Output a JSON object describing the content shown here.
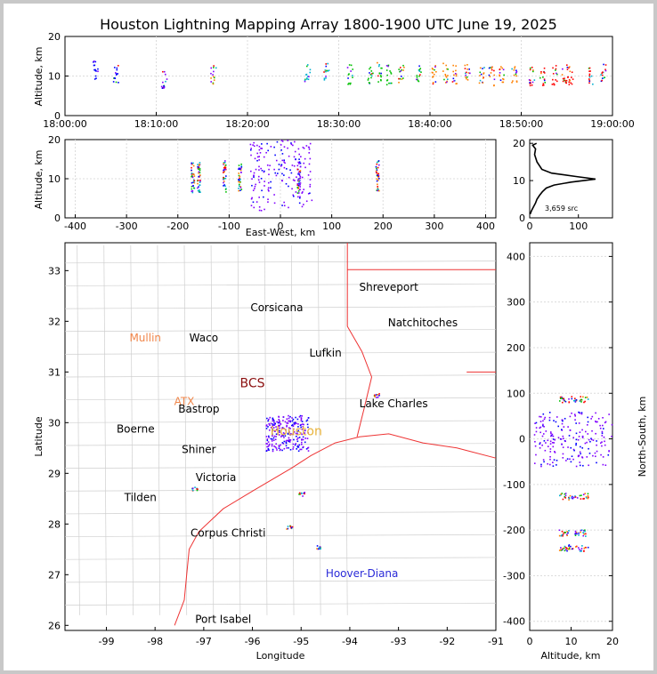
{
  "title": "Houston Lightning Mapping Array 1800-1900 UTC June 19, 2025",
  "time_panel": {
    "ylabel": "Altitude, km",
    "ylim": [
      0,
      20
    ],
    "yticks": [
      "0",
      "10",
      "20"
    ],
    "xticks": [
      "18:00:00",
      "18:10:00",
      "18:20:00",
      "18:30:00",
      "18:40:00",
      "18:50:00",
      "19:00:00"
    ],
    "bursts": [
      {
        "t": 3.3,
        "alt": 11.5
      },
      {
        "t": 5.5,
        "alt": 11
      },
      {
        "t": 10.8,
        "alt": 9.6
      },
      {
        "t": 16.2,
        "alt": 10.3
      },
      {
        "t": 26.5,
        "alt": 11
      },
      {
        "t": 28.6,
        "alt": 11
      },
      {
        "t": 31.2,
        "alt": 10.6
      },
      {
        "t": 33.4,
        "alt": 10.4
      },
      {
        "t": 34.4,
        "alt": 11.2
      },
      {
        "t": 35.5,
        "alt": 10.4
      },
      {
        "t": 36.8,
        "alt": 10.4
      },
      {
        "t": 38.7,
        "alt": 11
      },
      {
        "t": 40.4,
        "alt": 10.4
      },
      {
        "t": 41.6,
        "alt": 11
      },
      {
        "t": 42.6,
        "alt": 10.6
      },
      {
        "t": 44.0,
        "alt": 11
      },
      {
        "t": 45.6,
        "alt": 10.4
      },
      {
        "t": 46.7,
        "alt": 10
      },
      {
        "t": 47.8,
        "alt": 10.6
      },
      {
        "t": 49.2,
        "alt": 10.2
      },
      {
        "t": 51.1,
        "alt": 10
      },
      {
        "t": 52.3,
        "alt": 9.8
      },
      {
        "t": 53.6,
        "alt": 10.4
      },
      {
        "t": 54.7,
        "alt": 10.6
      },
      {
        "t": 55.3,
        "alt": 10.2
      },
      {
        "t": 57.5,
        "alt": 10.6
      },
      {
        "t": 58.9,
        "alt": 10.8
      }
    ]
  },
  "ew_panel": {
    "ylabel": "Altitude, km",
    "xlabel": "East-West, km",
    "xlim": [
      -420,
      420
    ],
    "xticks": [
      "-400",
      "-300",
      "-200",
      "-100",
      "0",
      "100",
      "200",
      "300",
      "400"
    ],
    "ylim": [
      0,
      20
    ],
    "yticks": [
      "0",
      "10",
      "20"
    ],
    "columns": [
      {
        "x": -172,
        "alt": 10.5
      },
      {
        "x": -160,
        "alt": 10.5
      },
      {
        "x": -110,
        "alt": 10.8
      },
      {
        "x": -80,
        "alt": 10.2
      },
      {
        "x": 35,
        "alt": 10.5
      },
      {
        "x": 188,
        "alt": 10.8
      }
    ]
  },
  "alt_hist": {
    "xticks": [
      "0",
      "100"
    ],
    "yticks": [
      "0",
      "10",
      "20"
    ],
    "xlim": [
      0,
      170
    ],
    "ylim": [
      0,
      21
    ],
    "count_label": "3,659 src",
    "profile": [
      [
        1,
        1
      ],
      [
        4,
        2
      ],
      [
        8,
        3
      ],
      [
        12,
        4
      ],
      [
        15,
        5
      ],
      [
        20,
        6
      ],
      [
        26,
        7
      ],
      [
        34,
        8
      ],
      [
        50,
        8.8
      ],
      [
        85,
        9.6
      ],
      [
        135,
        10.4
      ],
      [
        95,
        11.1
      ],
      [
        45,
        12
      ],
      [
        25,
        13
      ],
      [
        15,
        15
      ],
      [
        10,
        17
      ],
      [
        12,
        18.5
      ],
      [
        6,
        19.5
      ],
      [
        14,
        20
      ]
    ]
  },
  "map_panel": {
    "xlabel": "Longitude",
    "ylabel": "Latitude",
    "xlim": [
      -99.85,
      -91.0
    ],
    "ylim": [
      25.9,
      33.55
    ],
    "xticks": [
      "-99",
      "-98",
      "-97",
      "-96",
      "-95",
      "-94",
      "-93",
      "-92",
      "-91"
    ],
    "yticks": [
      "26",
      "27",
      "28",
      "29",
      "30",
      "31",
      "32",
      "33"
    ],
    "cities": [
      {
        "name": "Shreveport",
        "lon": -93.2,
        "lat": 32.6,
        "color": "#000000"
      },
      {
        "name": "Corsicana",
        "lon": -95.5,
        "lat": 32.2,
        "color": "#000000"
      },
      {
        "name": "Mullin",
        "lon": -98.2,
        "lat": 31.6,
        "color": "#f0864a"
      },
      {
        "name": "Waco",
        "lon": -97.0,
        "lat": 31.6,
        "color": "#000000"
      },
      {
        "name": "Natchitoches",
        "lon": -92.5,
        "lat": 31.9,
        "color": "#000000"
      },
      {
        "name": "Lufkin",
        "lon": -94.5,
        "lat": 31.3,
        "color": "#000000"
      },
      {
        "name": "BCS",
        "lon": -96.0,
        "lat": 30.7,
        "color": "#8b1010"
      },
      {
        "name": "ATX",
        "lon": -97.4,
        "lat": 30.35,
        "color": "#f0864a"
      },
      {
        "name": "Bastrop",
        "lon": -97.1,
        "lat": 30.2,
        "color": "#000000"
      },
      {
        "name": "Lake Charles",
        "lon": -93.1,
        "lat": 30.3,
        "color": "#000000"
      },
      {
        "name": "Boerne",
        "lon": -98.4,
        "lat": 29.8,
        "color": "#000000"
      },
      {
        "name": "Houston",
        "lon": -95.1,
        "lat": 29.75,
        "color": "#e8b23a"
      },
      {
        "name": "Shiner",
        "lon": -97.1,
        "lat": 29.4,
        "color": "#000000"
      },
      {
        "name": "Victoria",
        "lon": -96.75,
        "lat": 28.85,
        "color": "#000000"
      },
      {
        "name": "Tilden",
        "lon": -98.3,
        "lat": 28.45,
        "color": "#000000"
      },
      {
        "name": "Corpus Christi",
        "lon": -96.5,
        "lat": 27.75,
        "color": "#000000"
      },
      {
        "name": "Hoover-Diana",
        "lon": -93.75,
        "lat": 26.95,
        "color": "#2b2bd8"
      },
      {
        "name": "Port Isabel",
        "lon": -96.6,
        "lat": 26.05,
        "color": "#000000"
      }
    ]
  },
  "ns_panel": {
    "ylabel": "North-South, km",
    "xlabel": "Altitude, km",
    "xlim": [
      0,
      20
    ],
    "xticks": [
      "0",
      "10",
      "20"
    ],
    "ylim": [
      -420,
      430
    ],
    "yticks": [
      "-400",
      "-300",
      "-200",
      "-100",
      "0",
      "100",
      "200",
      "300",
      "400"
    ],
    "bands": [
      {
        "ns": 88,
        "alt": 10.5
      },
      {
        "ns": -125,
        "alt": 10.5
      },
      {
        "ns": -205,
        "alt": 10.5
      },
      {
        "ns": -238,
        "alt": 10.5
      }
    ]
  },
  "colors": {
    "red": "#ff0000",
    "green": "#00c000",
    "blue": "#0000ff",
    "cyan": "#00b0d0",
    "violet": "#8000ff",
    "orange": "#ff8000"
  }
}
